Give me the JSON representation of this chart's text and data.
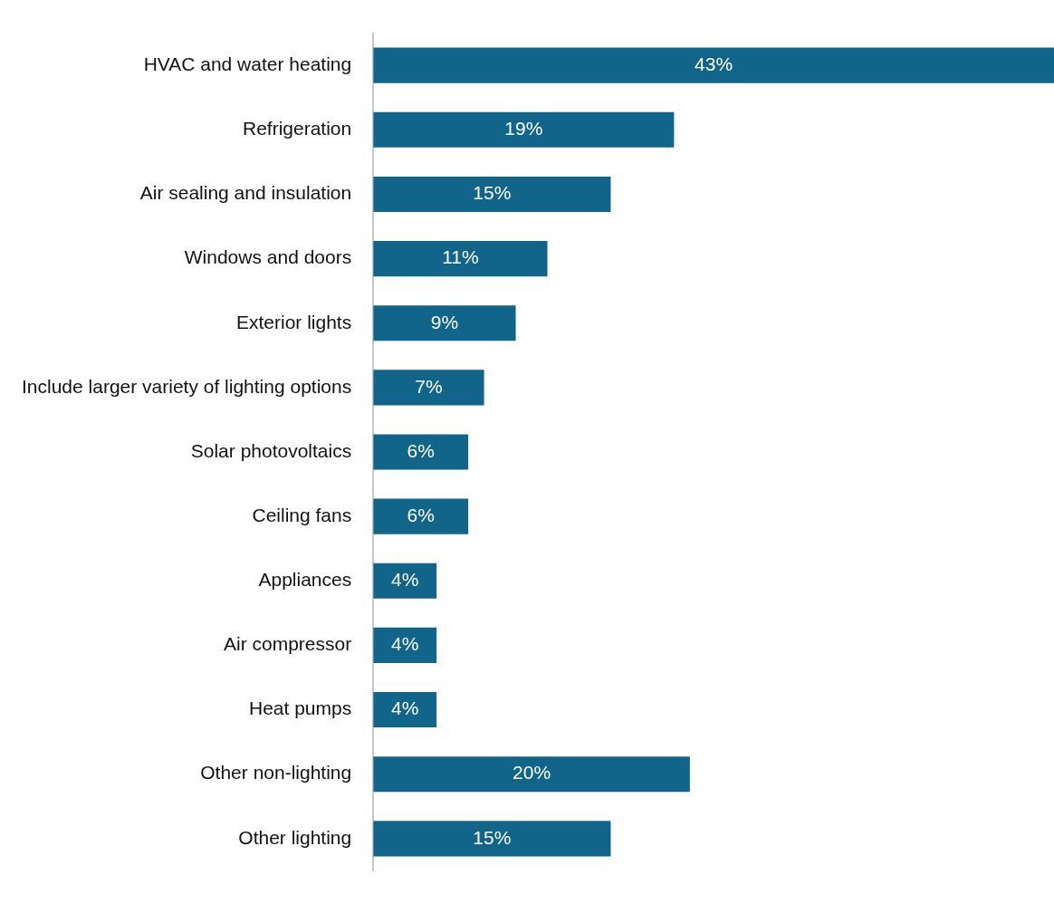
{
  "chart_data": {
    "type": "bar",
    "orientation": "horizontal",
    "categories": [
      "HVAC and water heating",
      "Refrigeration",
      "Air sealing and insulation",
      "Windows and doors",
      "Exterior lights",
      "Include larger variety of lighting options",
      "Solar photovoltaics",
      "Ceiling fans",
      "Appliances",
      "Air compressor",
      "Heat pumps",
      "Other non-lighting",
      "Other lighting"
    ],
    "values": [
      43,
      19,
      15,
      11,
      9,
      7,
      6,
      6,
      4,
      4,
      4,
      20,
      15
    ],
    "value_labels": [
      "43%",
      "19%",
      "15%",
      "11%",
      "9%",
      "7%",
      "6%",
      "6%",
      "4%",
      "4%",
      "4%",
      "20%",
      "15%"
    ],
    "color": "#11648a",
    "xlim": [
      0,
      43
    ],
    "legend": false
  }
}
